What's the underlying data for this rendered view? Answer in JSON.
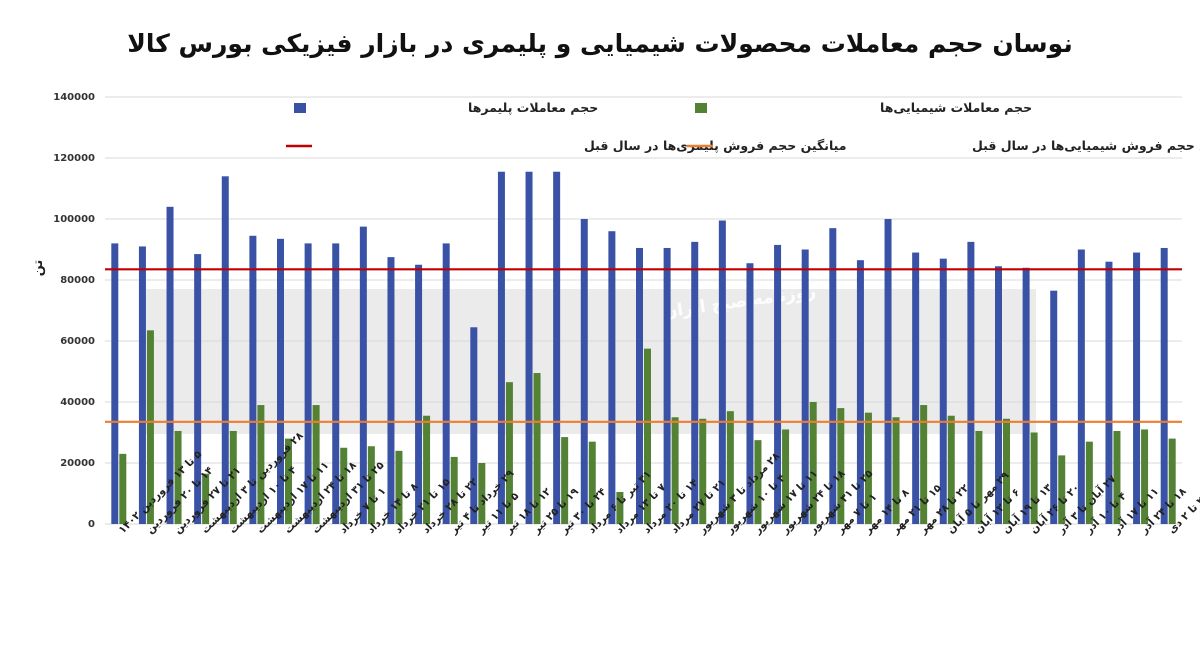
{
  "chart_data": {
    "type": "bar",
    "title": "نوسان حجم معاملات محصولات شیمیایی و پلیمری در بازار فیزیکی بورس کالا",
    "ylabel": "تن",
    "xlabel": "",
    "ylim": [
      0,
      140000
    ],
    "yticks": [
      0,
      20000,
      40000,
      60000,
      80000,
      100000,
      120000,
      140000
    ],
    "ytick_labels": [
      "0",
      "20000",
      "40000",
      "60000",
      "80000",
      "100000",
      "120000",
      "140000"
    ],
    "grid": "horizontal",
    "legend_position": "top",
    "categories": [
      "۵ تا ۱۳ فروردین ۱۴۰۲",
      "۱۴ تا ۲۰ فروردین",
      "۲۱ تا ۲۷ فروردین",
      "۲۸ فروردین تا ۳ اردیبهشت",
      "۴ تا ۱۰ اردیبهشت",
      "۱۱ تا ۱۷ اردیبهشت",
      "۱۸ تا ۲۴ اردیبهشت",
      "۲۵ تا ۳۱ اردیبهشت",
      "۱ تا ۷ خرداد",
      "۸ تا ۱۴ خرداد",
      "۱۵ تا ۲۱ خرداد",
      "۲۲ تا ۲۸ خرداد",
      "۲۹ خرداد تا ۴ تیر",
      "۵ تا ۱۱ تیر",
      "۱۲ تا ۱۸ تیر",
      "۱۹ تا ۲۵ تیر",
      "۲۴ تا ۳۰ تیر",
      "۳۱ تیر تا ۶ مرداد",
      "۷ تا ۱۳ مرداد",
      "۱۴ تا ۲۰ مرداد",
      "۲۱ تا ۲۷ مرداد",
      "۲۸ مرداد تا ۳ شهریور",
      "۴ تا ۱۰ شهریور",
      "۱۱ تا ۱۷ شهریور",
      "۱۸ تا ۲۴ شهریور",
      "۲۵ تا ۳۱ شهریور",
      "۱ تا ۷ مهر",
      "۸ تا ۱۴ مهر",
      "۱۵ تا ۲۱ مهر",
      "۲۲ تا ۲۸ مهر",
      "۲۹ مهر تا ۵ آبان",
      "۶ تا ۱۲ آبان",
      "۱۳ تا ۱۹ آبان",
      "۲۰ تا ۲۶ آبان",
      "۲۷ آبان تا ۳ آذر",
      "۴ تا ۱۰ آذر",
      "۱۱ تا ۱۷ آذر",
      "۱۸ تا ۲۴ آذر",
      "۲۵ تا ۲ دی"
    ],
    "series": [
      {
        "name": "حجم معاملات پلیمرها",
        "color": "#3a52a6",
        "values": [
          92000,
          91000,
          104000,
          88500,
          114000,
          94500,
          93500,
          92000,
          92000,
          97500,
          87500,
          85000,
          92000,
          64500,
          115500,
          115500,
          115500,
          100000,
          96000,
          90500,
          90500,
          92500,
          99500,
          85500,
          91500,
          90000,
          97000,
          86500,
          100000,
          89000,
          87000,
          92500,
          84500,
          84000,
          76500,
          90000,
          86000,
          89000,
          90500
        ]
      },
      {
        "name": "حجم معاملات شیمیایی‌ها",
        "color": "#548235",
        "values": [
          23000,
          63500,
          30500,
          16500,
          30500,
          39000,
          28000,
          39000,
          25000,
          25500,
          24000,
          35500,
          22000,
          20000,
          46500,
          49500,
          28500,
          27000,
          10500,
          57500,
          35000,
          34500,
          37000,
          27500,
          31000,
          40000,
          38000,
          36500,
          35000,
          39000,
          35500,
          30500,
          34500,
          30000,
          22500,
          27000,
          30500,
          31000,
          28000
        ]
      }
    ],
    "reference_lines": [
      {
        "name": "میانگین حجم فروش پلیمری‌ها در سال قبل",
        "color": "#c00000",
        "value": 83500
      },
      {
        "name": "میانگین حجم فروش شیمیایی‌ها در سال قبل",
        "color": "#ed7d31",
        "value": 33500
      }
    ],
    "watermark": "روزنامه صبح ایران"
  }
}
